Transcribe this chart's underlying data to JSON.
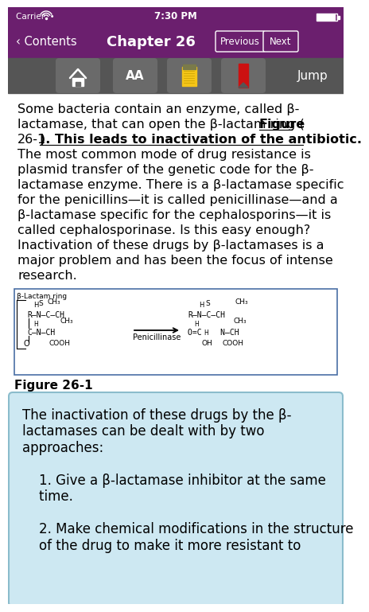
{
  "status_bar_bg": "#6b1f6e",
  "nav_bar_bg": "#6b1f6e",
  "nav_title": "Chapter 26",
  "nav_back": "‹ Contents",
  "nav_prev": "Previous",
  "nav_next": "Next",
  "toolbar_bg": "#555555",
  "toolbar_jump": "Jump",
  "body_bg": "#ffffff",
  "body_text_color": "#000000",
  "figure_box_border": "#4a6fa5",
  "figure_box_bg": "#ffffff",
  "figure_beta_lactam_label": "β-Lactam ring",
  "blue_box_bg": "#cde8f2",
  "blue_box_border": "#8bbccc",
  "blue_box_text_color": "#000000",
  "text_lines": [
    "Some bacteria contain an enzyme, called β-",
    "lactamase, that can open the β-lactam ring (​Figure",
    "26-1​). This leads to inactivation of the antibiotic.",
    "The most common mode of drug resistance is",
    "plasmid transfer of the genetic code for the β-",
    "lactamase enzyme. There is a β-lactamase specific",
    "for the penicillins—it is called penicillinase—and a",
    "β-lactamase specific for the cephalosporins—it is",
    "called cephalosporinase. Is this easy enough?",
    "Inactivation of these drugs by β-lactamases is a",
    "major problem and has been the focus of intense",
    "research."
  ],
  "blue_lines": [
    "The inactivation of these drugs by the β-",
    "lactamases can be dealt with by two",
    "approaches:",
    "",
    "    1. Give a β-lactamase inhibitor at the same",
    "    time.",
    "",
    "    2. Make chemical modifications in the structure",
    "    of the drug to make it more resistant to"
  ]
}
